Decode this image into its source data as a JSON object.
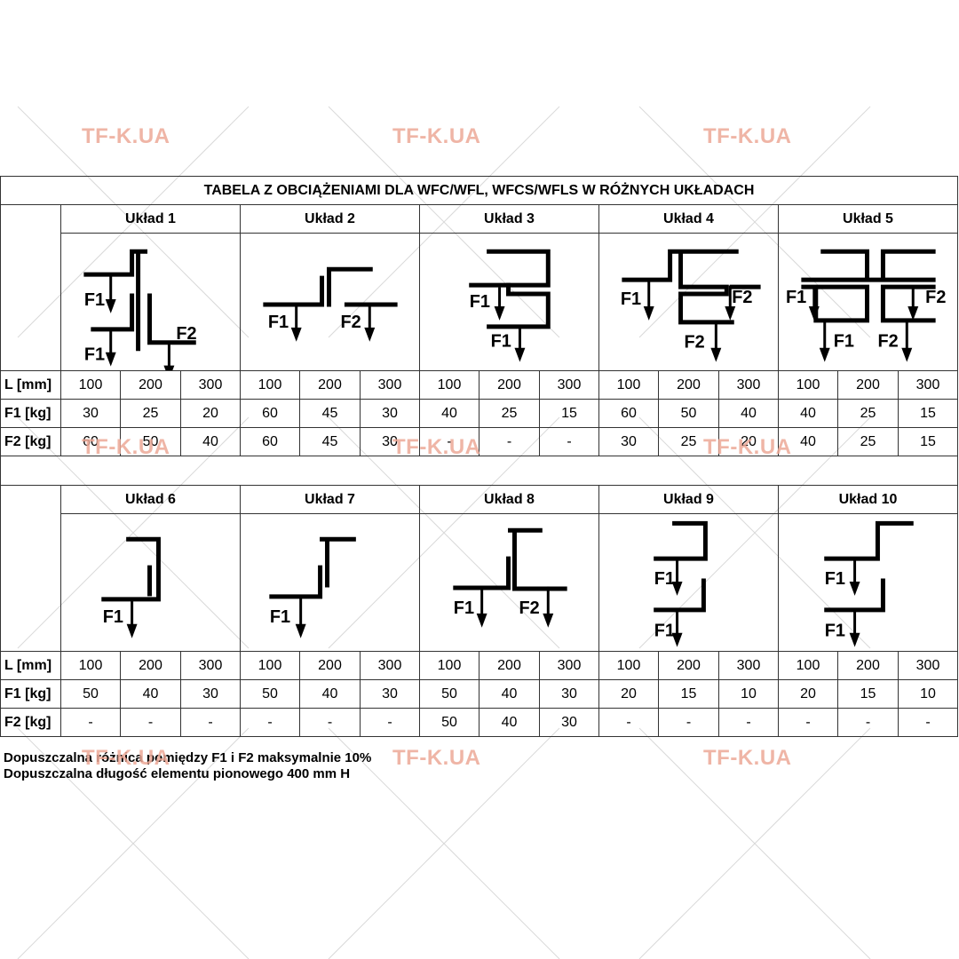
{
  "title": "TABELA  Z OBCIĄŻENIAMI DLA WFC/WFL, WFCS/WFLS W RÓŻNYCH UKŁADACH",
  "watermark": "TF-K.UA",
  "row_labels": {
    "L": "L [mm]",
    "F1": "F1 [kg]",
    "F2": "F2 [kg]"
  },
  "force_labels": {
    "f1": "F1",
    "f2": "F2"
  },
  "groups": [
    {
      "layouts": [
        {
          "name": "Układ 1",
          "L": [
            "100",
            "200",
            "300"
          ],
          "F1": [
            "30",
            "25",
            "20"
          ],
          "F2": [
            "60",
            "50",
            "40"
          ]
        },
        {
          "name": "Układ 2",
          "L": [
            "100",
            "200",
            "300"
          ],
          "F1": [
            "60",
            "45",
            "30"
          ],
          "F2": [
            "60",
            "45",
            "30"
          ]
        },
        {
          "name": "Układ 3",
          "L": [
            "100",
            "200",
            "300"
          ],
          "F1": [
            "40",
            "25",
            "15"
          ],
          "F2": [
            "-",
            "-",
            "-"
          ]
        },
        {
          "name": "Układ 4",
          "L": [
            "100",
            "200",
            "300"
          ],
          "F1": [
            "60",
            "50",
            "40"
          ],
          "F2": [
            "30",
            "25",
            "20"
          ]
        },
        {
          "name": "Układ 5",
          "L": [
            "100",
            "200",
            "300"
          ],
          "F1": [
            "40",
            "25",
            "15"
          ],
          "F2": [
            "40",
            "25",
            "15"
          ]
        }
      ]
    },
    {
      "layouts": [
        {
          "name": "Układ 6",
          "L": [
            "100",
            "200",
            "300"
          ],
          "F1": [
            "50",
            "40",
            "30"
          ],
          "F2": [
            "-",
            "-",
            "-"
          ]
        },
        {
          "name": "Układ 7",
          "L": [
            "100",
            "200",
            "300"
          ],
          "F1": [
            "50",
            "40",
            "30"
          ],
          "F2": [
            "-",
            "-",
            "-"
          ]
        },
        {
          "name": "Układ 8",
          "L": [
            "100",
            "200",
            "300"
          ],
          "F1": [
            "50",
            "40",
            "30"
          ],
          "F2": [
            "50",
            "40",
            "30"
          ]
        },
        {
          "name": "Układ 9",
          "L": [
            "100",
            "200",
            "300"
          ],
          "F1": [
            "20",
            "15",
            "10"
          ],
          "F2": [
            "-",
            "-",
            "-"
          ]
        },
        {
          "name": "Układ 10",
          "L": [
            "100",
            "200",
            "300"
          ],
          "F1": [
            "20",
            "15",
            "10"
          ],
          "F2": [
            "-",
            "-",
            "-"
          ]
        }
      ]
    }
  ],
  "notes": [
    "Dopuszczalna różnica pomiędzy F1 i F2 maksymalnie 10%",
    "Dopuszczalna długość elementu pionowego 400 mm H"
  ]
}
